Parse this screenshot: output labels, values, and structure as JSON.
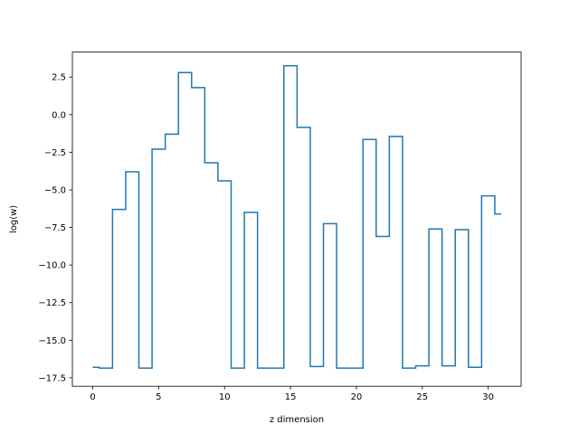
{
  "chart_data": {
    "type": "line",
    "step": "mid",
    "xlabel": "z dimension",
    "ylabel": "log(w)",
    "xlim": [
      -1.545,
      32.495
    ],
    "ylim": [
      -18.06,
      4.16
    ],
    "xticks": [
      0,
      5,
      10,
      15,
      20,
      25,
      30
    ],
    "yticks": [
      2.5,
      0.0,
      -2.5,
      -5.0,
      -7.5,
      -10.0,
      -12.5,
      -15.0,
      -17.5
    ],
    "ytick_labels": [
      "2.5",
      "0.0",
      "−2.5",
      "−5.0",
      "−7.5",
      "−10.0",
      "−12.5",
      "−15.0",
      "−17.5"
    ],
    "color": "#1f77b4",
    "series": [
      {
        "x": [
          0,
          1,
          2,
          3,
          4,
          5,
          6,
          7,
          8,
          9,
          10,
          11,
          12,
          13,
          14,
          15,
          16,
          17,
          18,
          19,
          20,
          21,
          22,
          23,
          24,
          25,
          26,
          27,
          28,
          29,
          30,
          31
        ],
        "values": [
          -16.8,
          -16.85,
          -6.3,
          -3.8,
          -16.85,
          -2.3,
          -1.3,
          2.8,
          1.8,
          -3.2,
          -4.4,
          -16.85,
          -6.5,
          -16.85,
          -16.85,
          3.25,
          -0.85,
          -16.75,
          -7.25,
          -16.85,
          -16.85,
          -1.65,
          -8.1,
          -1.45,
          -16.85,
          -16.7,
          -7.6,
          -16.7,
          -7.65,
          -16.8,
          -5.4,
          -6.6
        ]
      }
    ]
  }
}
